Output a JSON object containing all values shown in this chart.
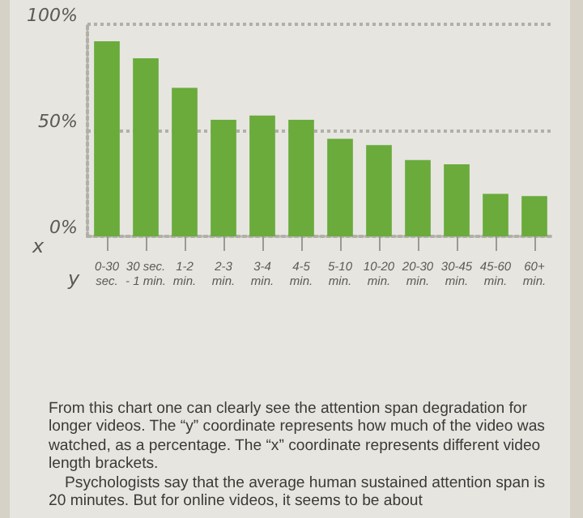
{
  "chart_data": {
    "type": "bar",
    "xlabel": "x",
    "ylabel": "y",
    "categories": [
      "0-30\nsec.",
      "30 sec.\n- 1 min.",
      "1-2\nmin.",
      "2-3\nmin.",
      "3-4\nmin.",
      "4-5\nmin.",
      "5-10\nmin.",
      "10-20\nmin.",
      "20-30\nmin.",
      "30-45\nmin.",
      "45-60\nmin.",
      "60+\nmin."
    ],
    "values": [
      92,
      84,
      70,
      55,
      57,
      55,
      46,
      43,
      36,
      34,
      20,
      19
    ],
    "color": "#6aab3c",
    "ylim": [
      0,
      100
    ],
    "yticks": [
      {
        "value": 0,
        "label": "0%"
      },
      {
        "value": 50,
        "label": "50%"
      },
      {
        "value": 100,
        "label": "100%"
      }
    ],
    "grid": "y",
    "annotations": [
      "From this chart one can clearly see the attention span degradation for longer videos. The “y” coordinate represents how much of the video was watched, as a percentage. The “x” coordinate represents different video length brackets.",
      "Psychologists say that the average human sustained attention span is 20 minutes. But for online videos, it seems to be about"
    ]
  }
}
